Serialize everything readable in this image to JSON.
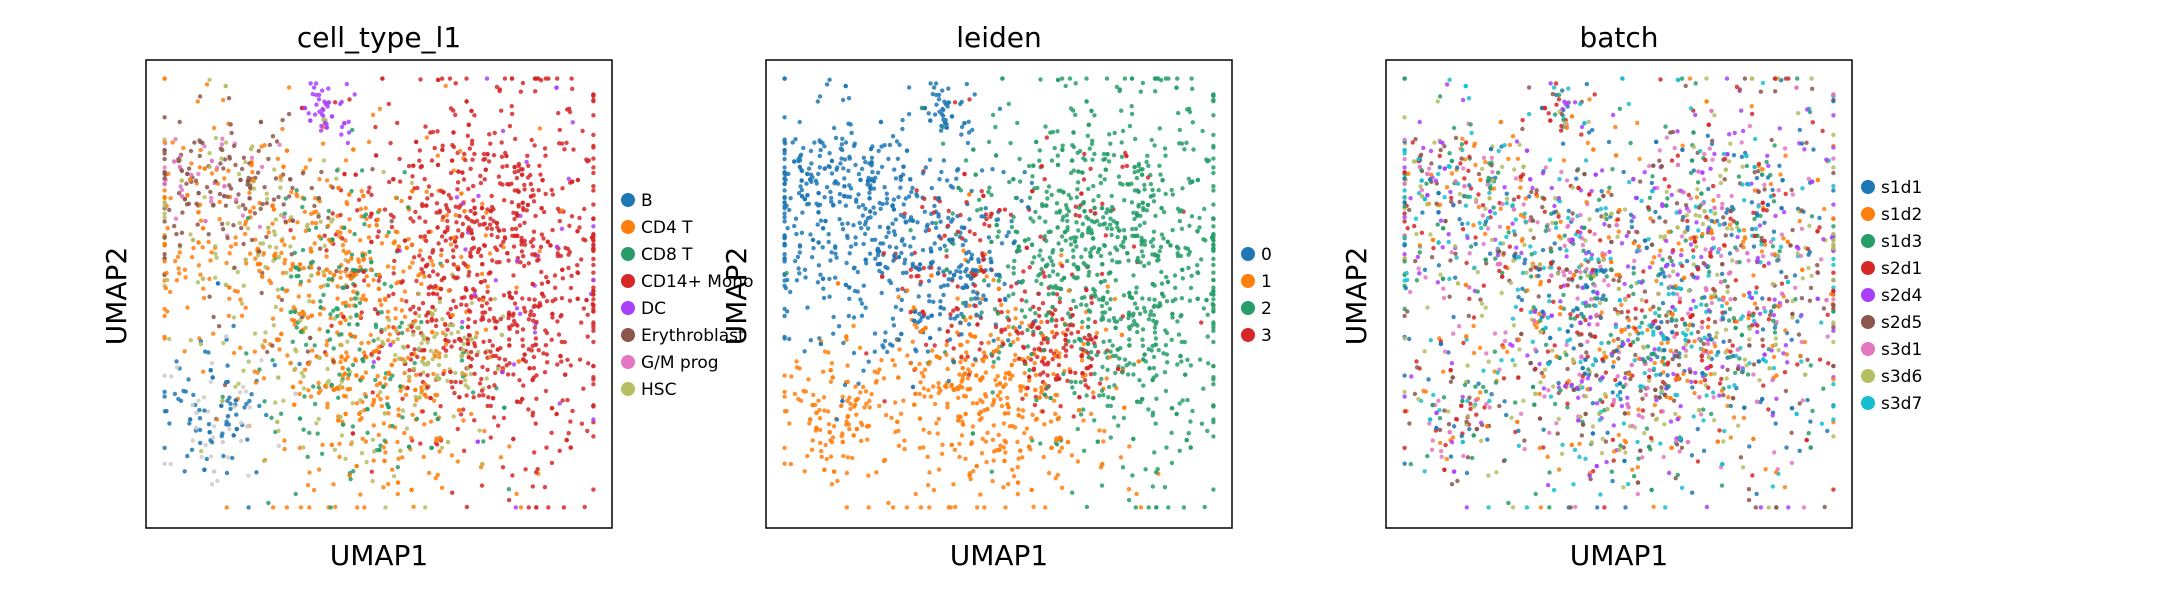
{
  "chart_data": [
    {
      "type": "scatter",
      "title": "cell_type_l1",
      "xlabel": "UMAP1",
      "ylabel": "UMAP2",
      "grid": false,
      "legend_placement": "right",
      "categories": [
        {
          "name": "B",
          "color": "#1f77b4"
        },
        {
          "name": "CD4 T",
          "color": "#ff7f0e"
        },
        {
          "name": "CD8 T",
          "color": "#279e68"
        },
        {
          "name": "CD14+ Mono",
          "color": "#d62728"
        },
        {
          "name": "DC",
          "color": "#aa40fc"
        },
        {
          "name": "Erythroblast",
          "color": "#8c564b"
        },
        {
          "name": "G/M prog",
          "color": "#e377c2"
        },
        {
          "name": "HSC",
          "color": "#b5bd61"
        }
      ]
    },
    {
      "type": "scatter",
      "title": "leiden",
      "xlabel": "UMAP1",
      "ylabel": "UMAP2",
      "grid": false,
      "legend_placement": "right",
      "categories": [
        {
          "name": "0",
          "color": "#1f77b4"
        },
        {
          "name": "1",
          "color": "#ff7f0e"
        },
        {
          "name": "2",
          "color": "#279e68"
        },
        {
          "name": "3",
          "color": "#d62728"
        }
      ]
    },
    {
      "type": "scatter",
      "title": "batch",
      "xlabel": "UMAP1",
      "ylabel": "UMAP2",
      "grid": false,
      "legend_placement": "right",
      "categories": [
        {
          "name": "s1d1",
          "color": "#1f77b4"
        },
        {
          "name": "s1d2",
          "color": "#ff7f0e"
        },
        {
          "name": "s1d3",
          "color": "#279e68"
        },
        {
          "name": "s2d1",
          "color": "#d62728"
        },
        {
          "name": "s2d4",
          "color": "#aa40fc"
        },
        {
          "name": "s2d5",
          "color": "#8c564b"
        },
        {
          "name": "s3d1",
          "color": "#e377c2"
        },
        {
          "name": "s3d6",
          "color": "#b5bd61"
        },
        {
          "name": "s3d7",
          "color": "#17becf"
        }
      ]
    }
  ]
}
